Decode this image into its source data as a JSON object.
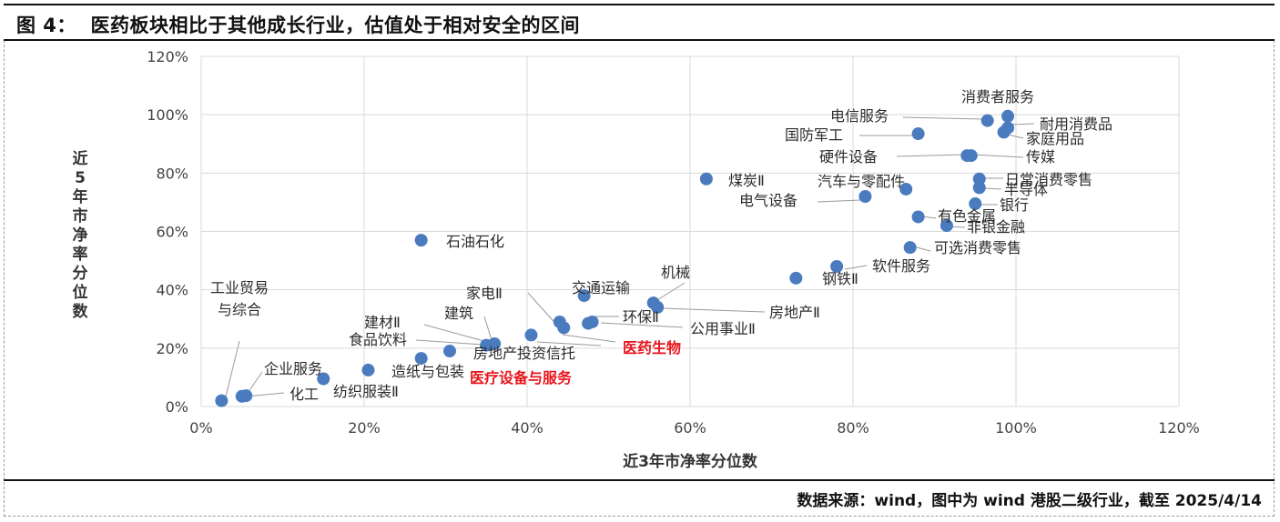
{
  "title": "图 4：  医药板块相比于其他成长行业，估值处于相对安全的区间",
  "source": "数据来源：wind，图中为 wind 港股二级行业，截至 2025/4/14",
  "chart_data": {
    "type": "scatter",
    "xlabel": "近3年市净率分位数",
    "ylabel": "近5年市净率分位数",
    "xlim": [
      0,
      120
    ],
    "ylim": [
      0,
      120
    ],
    "x_ticks": [
      "0%",
      "20%",
      "40%",
      "60%",
      "80%",
      "100%",
      "120%"
    ],
    "y_ticks": [
      "0%",
      "20%",
      "40%",
      "60%",
      "80%",
      "100%",
      "120%"
    ],
    "grid": true,
    "marker_color": "#4a7bbf",
    "highlight_color": "#e8141c",
    "points": [
      {
        "name": "工业贸易与综合",
        "x": 2.5,
        "y": 2
      },
      {
        "name": "化工",
        "x": 5,
        "y": 3.5
      },
      {
        "name": "纺织服装Ⅱ",
        "x": 5.5,
        "y": 3.7
      },
      {
        "name": "企业服务",
        "x": 15,
        "y": 9.5
      },
      {
        "name": "造纸与包装",
        "x": 20.5,
        "y": 12.5
      },
      {
        "name": "石油石化",
        "x": 27,
        "y": 57
      },
      {
        "name": "食品饮料",
        "x": 27,
        "y": 16.5
      },
      {
        "name": "建材Ⅱ",
        "x": 30.5,
        "y": 19
      },
      {
        "name": "医疗设备与服务",
        "x": 35,
        "y": 21
      },
      {
        "name": "建筑",
        "x": 36,
        "y": 21.5
      },
      {
        "name": "房地产投资信托",
        "x": 40.5,
        "y": 24.5
      },
      {
        "name": "家电Ⅱ",
        "x": 44,
        "y": 29
      },
      {
        "name": "医药生物",
        "x": 44.5,
        "y": 27,
        "highlight": true
      },
      {
        "name": "交通运输",
        "x": 47,
        "y": 38
      },
      {
        "name": "环保Ⅱ",
        "x": 47.5,
        "y": 28.5
      },
      {
        "name": "公用事业Ⅱ",
        "x": 48,
        "y": 29
      },
      {
        "name": "机械",
        "x": 55.5,
        "y": 35.5
      },
      {
        "name": "房地产Ⅱ",
        "x": 56,
        "y": 34
      },
      {
        "name": "煤炭Ⅱ",
        "x": 62,
        "y": 78
      },
      {
        "name": "钢铁Ⅱ",
        "x": 73,
        "y": 44
      },
      {
        "name": "软件服务",
        "x": 78,
        "y": 48
      },
      {
        "name": "电气设备",
        "x": 81.5,
        "y": 72
      },
      {
        "name": "汽车与零配件",
        "x": 86.5,
        "y": 74.5
      },
      {
        "name": "可选消费零售",
        "x": 87,
        "y": 54.5
      },
      {
        "name": "有色金属",
        "x": 88,
        "y": 65
      },
      {
        "name": "国防军工",
        "x": 88,
        "y": 93.5
      },
      {
        "name": "非银金融",
        "x": 91.5,
        "y": 62
      },
      {
        "name": "硬件设备",
        "x": 94,
        "y": 86
      },
      {
        "name": "传媒",
        "x": 94.5,
        "y": 86
      },
      {
        "name": "银行",
        "x": 95,
        "y": 69.5
      },
      {
        "name": "日常消费零售",
        "x": 95.5,
        "y": 78
      },
      {
        "name": "半导体",
        "x": 95.5,
        "y": 75
      },
      {
        "name": "电信服务",
        "x": 96.5,
        "y": 98
      },
      {
        "name": "家庭用品",
        "x": 98.5,
        "y": 94
      },
      {
        "name": "耐用消费品",
        "x": 99,
        "y": 95.5
      },
      {
        "name": "消费者服务",
        "x": 99,
        "y": 99.5
      }
    ]
  }
}
